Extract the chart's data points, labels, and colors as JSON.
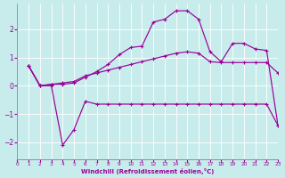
{
  "xlabel": "Windchill (Refroidissement éolien,°C)",
  "bg_color": "#c8ecec",
  "line_color": "#990099",
  "grid_color": "#ffffff",
  "xlim": [
    0,
    23
  ],
  "ylim": [
    -2.6,
    2.9
  ],
  "yticks": [
    -2,
    -1,
    0,
    1,
    2
  ],
  "xticks": [
    0,
    1,
    2,
    3,
    4,
    5,
    6,
    7,
    8,
    9,
    10,
    11,
    12,
    13,
    14,
    15,
    16,
    17,
    18,
    19,
    20,
    21,
    22,
    23
  ],
  "curve_top_x": [
    1,
    2,
    3,
    4,
    5,
    6,
    7,
    8,
    9,
    10,
    11,
    12,
    13,
    14,
    15,
    16,
    17,
    18,
    19,
    20,
    21,
    22,
    23
  ],
  "curve_top_y": [
    0.7,
    0.0,
    0.05,
    0.05,
    0.1,
    0.3,
    0.5,
    0.75,
    1.1,
    1.35,
    1.4,
    2.25,
    2.35,
    2.65,
    2.65,
    2.35,
    1.2,
    0.85,
    1.5,
    1.5,
    1.3,
    1.25,
    -1.4
  ],
  "curve_mid_x": [
    1,
    2,
    3,
    4,
    5,
    6,
    7,
    8,
    9,
    10,
    11,
    12,
    13,
    14,
    15,
    16,
    17,
    18,
    19,
    20,
    21,
    22,
    23
  ],
  "curve_mid_y": [
    0.7,
    0.0,
    0.05,
    0.1,
    0.15,
    0.35,
    0.45,
    0.55,
    0.65,
    0.75,
    0.85,
    0.95,
    1.05,
    1.15,
    1.2,
    1.15,
    0.85,
    0.82,
    0.82,
    0.82,
    0.82,
    0.82,
    0.45
  ],
  "curve_bot_x": [
    1,
    2,
    3,
    4,
    5,
    6,
    7,
    8,
    9,
    10,
    11,
    12,
    13,
    14,
    15,
    16,
    17,
    18,
    19,
    20,
    21,
    22,
    23
  ],
  "curve_bot_y": [
    0.7,
    0.0,
    0.0,
    -2.1,
    -1.55,
    -0.55,
    -0.65,
    -0.65,
    -0.65,
    -0.65,
    -0.65,
    -0.65,
    -0.65,
    -0.65,
    -0.65,
    -0.65,
    -0.65,
    -0.65,
    -0.65,
    -0.65,
    -0.65,
    -0.65,
    -1.4
  ]
}
